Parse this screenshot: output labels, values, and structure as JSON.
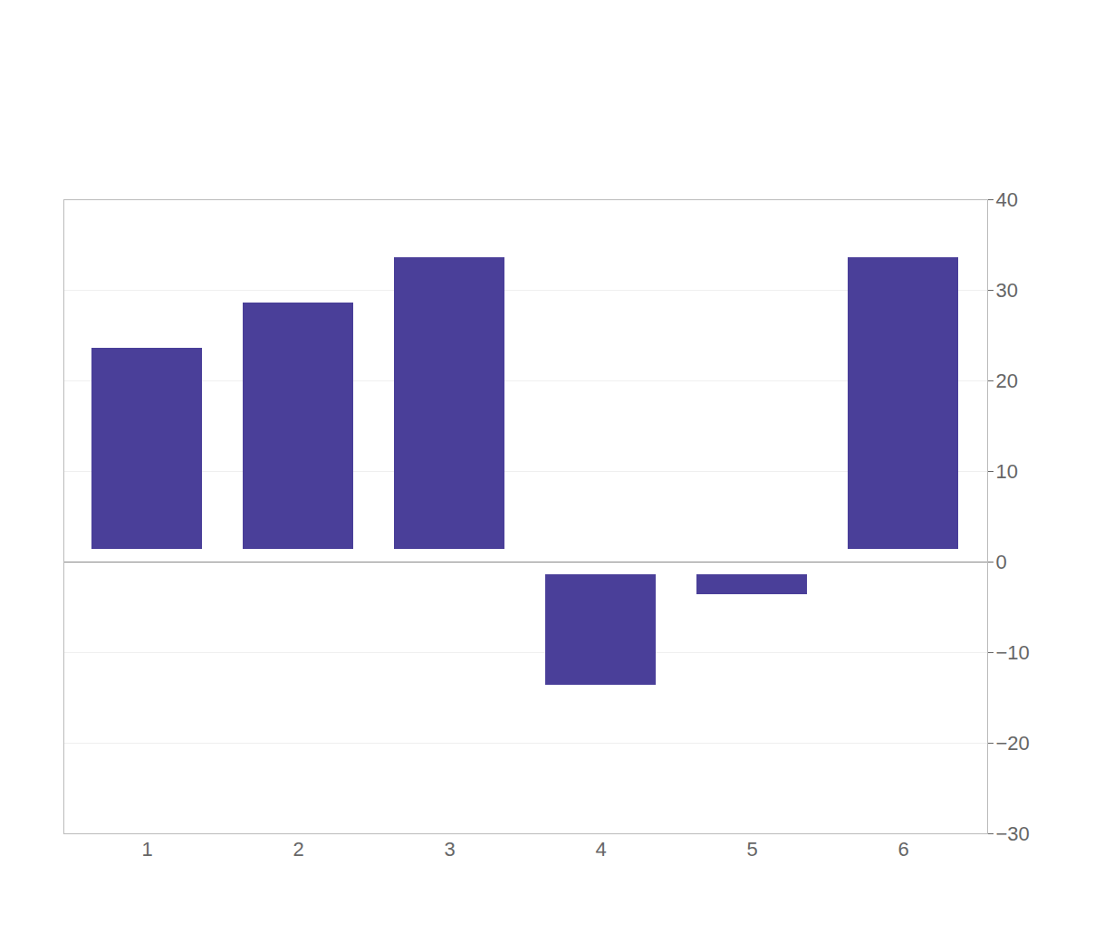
{
  "chart_data": {
    "type": "bar",
    "categories": [
      "1",
      "2",
      "3",
      "4",
      "5",
      "6"
    ],
    "values": [
      25,
      30,
      35,
      -15,
      -5,
      35
    ],
    "color": "#4a3f99",
    "ylim": [
      -30,
      40
    ],
    "yticks": [
      -30,
      -20,
      -10,
      0,
      10,
      20,
      30,
      40
    ],
    "grid": true
  }
}
